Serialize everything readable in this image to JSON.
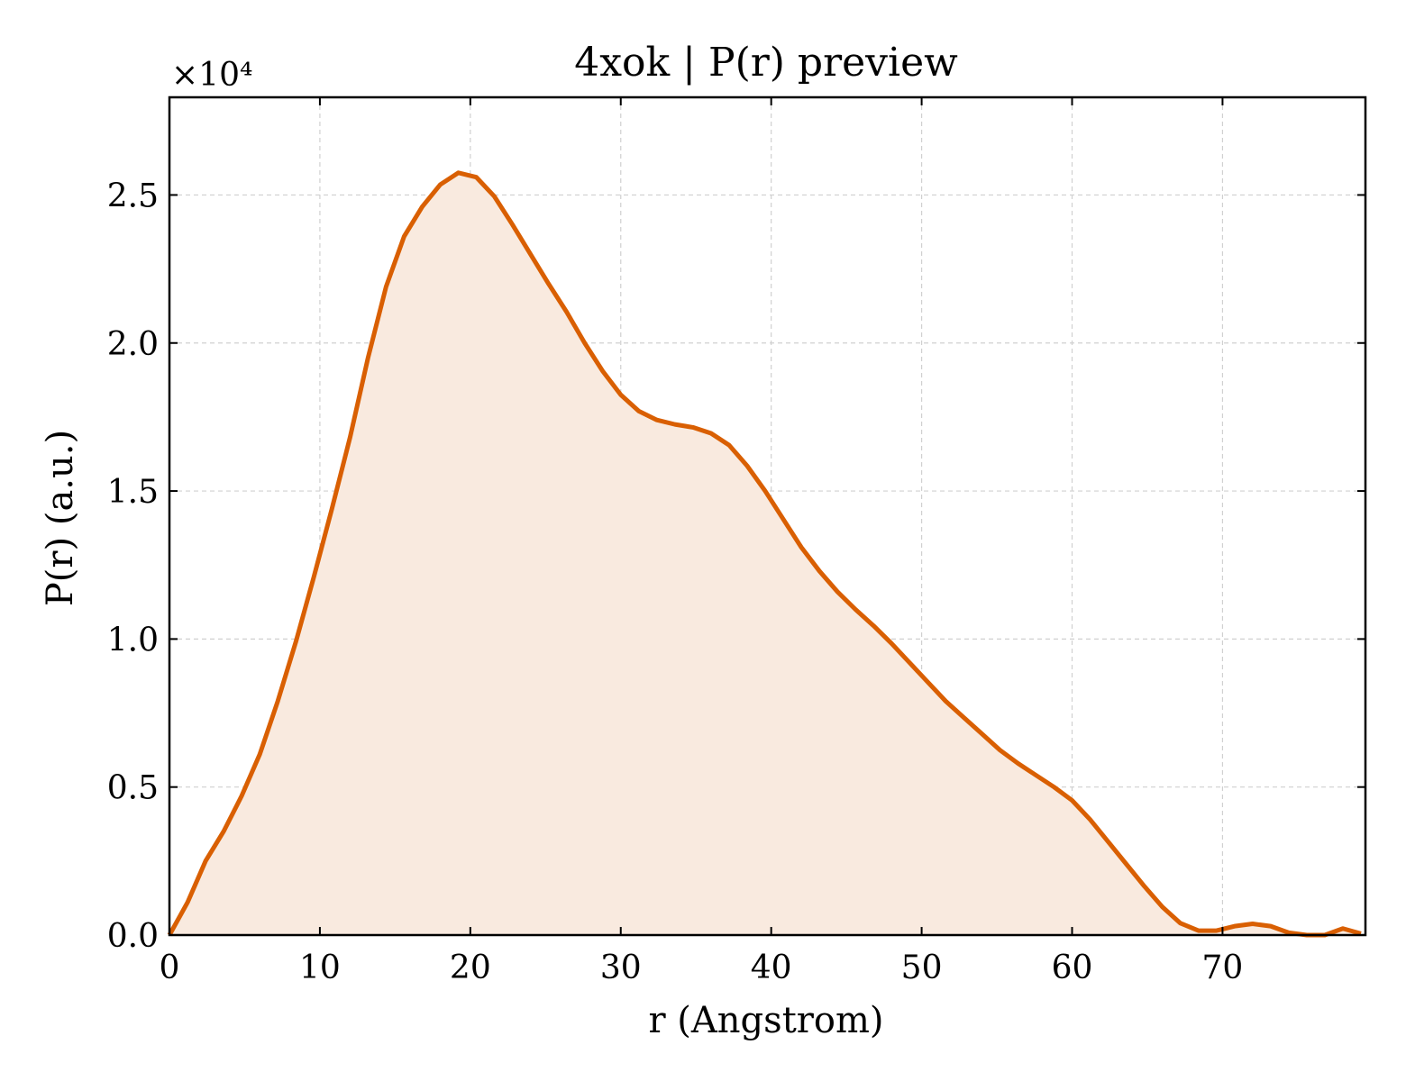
{
  "chart_data": {
    "type": "area",
    "title": "4xok | P(r) preview",
    "xlabel": "r (Angstrom)",
    "ylabel": "P(r) (a.u.)",
    "y_offset_label": "×10⁴",
    "xlim": [
      0,
      79.5
    ],
    "ylim": [
      0,
      2.83
    ],
    "y_scale_factor": 10000,
    "xticks": [
      "0",
      "10",
      "20",
      "30",
      "40",
      "50",
      "60",
      "70"
    ],
    "xtick_values": [
      0,
      10,
      20,
      30,
      40,
      50,
      60,
      70
    ],
    "yticks": [
      "0.0",
      "0.5",
      "1.0",
      "1.5",
      "2.0",
      "2.5"
    ],
    "ytick_values": [
      0,
      0.5,
      1.0,
      1.5,
      2.0,
      2.5
    ],
    "grid": true,
    "colors": {
      "line": "#d95f02",
      "fill": "#f9eadf"
    },
    "series": [
      {
        "x": [
          0,
          1.2,
          2.4,
          3.6,
          4.8,
          6.0,
          7.2,
          8.4,
          9.6,
          10.8,
          12.0,
          13.2,
          14.4,
          15.6,
          16.8,
          18.0,
          19.2,
          20.4,
          21.6,
          22.8,
          24.0,
          25.2,
          26.4,
          27.6,
          28.8,
          30.0,
          31.2,
          32.4,
          33.6,
          34.8,
          36.0,
          37.2,
          38.4,
          39.6,
          40.8,
          42.0,
          43.2,
          44.4,
          45.6,
          46.8,
          48.0,
          49.2,
          50.4,
          51.6,
          52.8,
          54.0,
          55.2,
          56.4,
          57.6,
          58.8,
          60.0,
          61.2,
          62.4,
          63.6,
          64.8,
          66.0,
          67.2,
          68.4,
          69.6,
          70.8,
          72.0,
          73.2,
          74.4,
          75.6,
          76.8,
          78.0,
          79.2
        ],
        "y": [
          0.0,
          0.11,
          0.25,
          0.35,
          0.47,
          0.61,
          0.79,
          0.99,
          1.21,
          1.44,
          1.68,
          1.95,
          2.19,
          2.36,
          2.46,
          2.535,
          2.575,
          2.56,
          2.495,
          2.4,
          2.3,
          2.2,
          2.105,
          2.0,
          1.905,
          1.825,
          1.77,
          1.74,
          1.725,
          1.715,
          1.695,
          1.655,
          1.585,
          1.5,
          1.405,
          1.31,
          1.23,
          1.16,
          1.1,
          1.045,
          0.985,
          0.92,
          0.855,
          0.79,
          0.735,
          0.68,
          0.625,
          0.58,
          0.54,
          0.5,
          0.455,
          0.39,
          0.315,
          0.24,
          0.165,
          0.095,
          0.04,
          0.015,
          0.015,
          0.03,
          0.038,
          0.03,
          0.008,
          0.0,
          0.0,
          0.022,
          0.005
        ]
      }
    ]
  }
}
